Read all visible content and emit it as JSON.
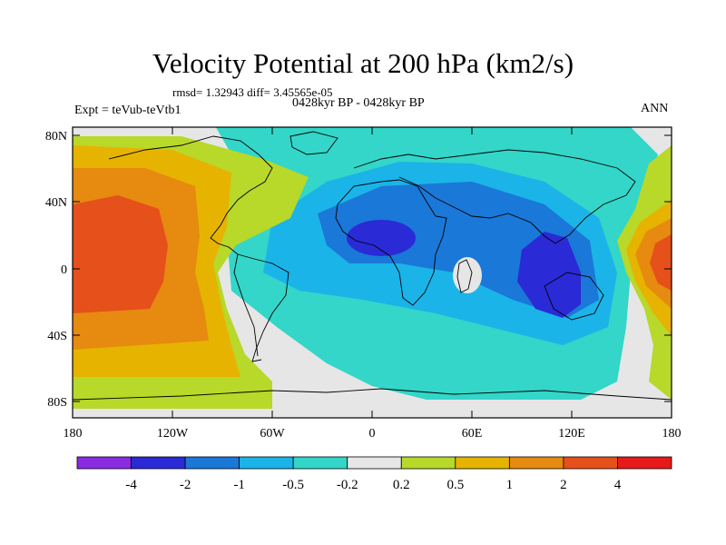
{
  "title": "Velocity Potential at 200 hPa (km2/s)",
  "stats": "rmsd= 1.32943 diff= 3.45565e-05",
  "period": "0428kyr BP - 0428kyr BP",
  "experiment": "Expt = teVub-teVtb1",
  "season": "ANN",
  "map": {
    "lon_ticks": [
      "180",
      "120W",
      "60W",
      "0",
      "60E",
      "120E",
      "180"
    ],
    "lat_ticks": [
      "80N",
      "40N",
      "0",
      "40S",
      "80S"
    ],
    "missing_color": "#e6e6e6"
  },
  "colorbar": {
    "colors": [
      "#8a2be2",
      "#2a2ad6",
      "#1a78d8",
      "#1ab4e8",
      "#33d6c8",
      "#e6e6e6",
      "#b8d82a",
      "#e6b400",
      "#e68a10",
      "#e6501a",
      "#e61a1a"
    ],
    "labels": [
      "-4",
      "-2",
      "-1",
      "-0.5",
      "-0.2",
      "0.2",
      "0.5",
      "1",
      "2",
      "4"
    ]
  }
}
